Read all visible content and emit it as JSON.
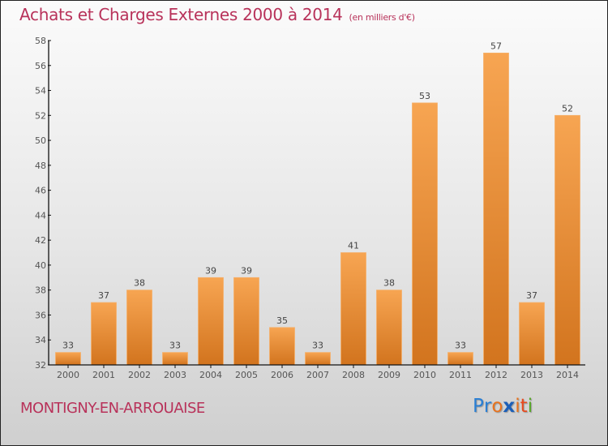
{
  "chart_data": {
    "type": "bar",
    "title": "Achats et Charges Externes 2000 à 2014",
    "subtitle": "(en milliers d'€)",
    "xlabel": "",
    "ylabel": "",
    "categories": [
      "2000",
      "2001",
      "2002",
      "2003",
      "2004",
      "2005",
      "2006",
      "2007",
      "2008",
      "2009",
      "2010",
      "2011",
      "2012",
      "2013",
      "2014"
    ],
    "values": [
      33,
      37,
      38,
      33,
      39,
      39,
      35,
      33,
      41,
      38,
      53,
      33,
      57,
      37,
      52
    ],
    "ylim": [
      32,
      58
    ],
    "yticks": [
      32,
      34,
      36,
      38,
      40,
      42,
      44,
      46,
      48,
      50,
      52,
      54,
      56,
      58
    ],
    "grid": false,
    "data_labels": true,
    "bar_color": "#f0903a"
  },
  "footer": {
    "city": "MONTIGNY-EN-ARROUAISE",
    "logo_letters": [
      {
        "ch": "P",
        "color": "#2a7fd4"
      },
      {
        "ch": "r",
        "color": "#2a7fd4"
      },
      {
        "ch": "o",
        "color": "#e8731e"
      },
      {
        "ch": "x",
        "color": "#1c5fb8"
      },
      {
        "ch": "i",
        "color": "#e8731e"
      },
      {
        "ch": "t",
        "color": "#e84a1e"
      },
      {
        "ch": "i",
        "color": "#5aa82a"
      }
    ]
  },
  "colors": {
    "title": "#b8325a",
    "axis": "#111111"
  }
}
